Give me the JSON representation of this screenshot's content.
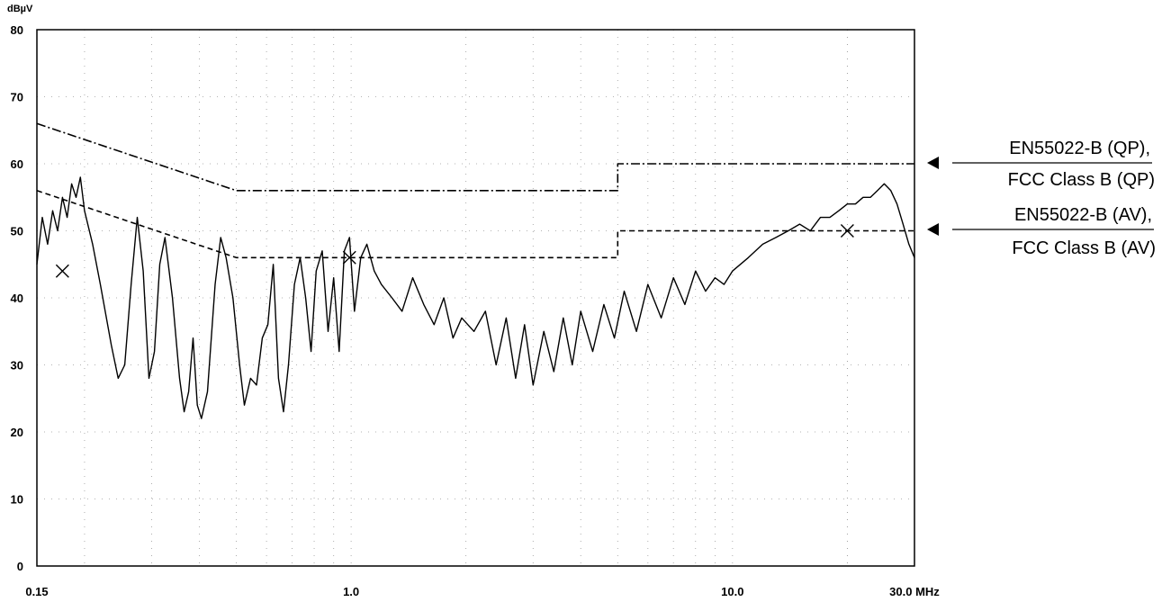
{
  "chart_data": {
    "type": "line",
    "title": "",
    "xlabel": "",
    "ylabel": "",
    "y_unit": "dBµV",
    "x_unit": "MHz",
    "x_scale": "log",
    "xlim": [
      0.15,
      30.0
    ],
    "ylim": [
      0,
      80
    ],
    "y_ticks": [
      "0",
      "10",
      "20",
      "30",
      "40",
      "50",
      "60",
      "70",
      "80"
    ],
    "x_ticks": [
      {
        "value": 0.15,
        "label": "0.15"
      },
      {
        "value": 1.0,
        "label": "1.0"
      },
      {
        "value": 10.0,
        "label": "10.0"
      },
      {
        "value": 30.0,
        "label": "30.0 MHz"
      }
    ],
    "grid": true,
    "series": [
      {
        "name": "",
        "style": "dash-dot",
        "points": [
          [
            0.15,
            66
          ],
          [
            0.5,
            56
          ],
          [
            5.0,
            56
          ],
          [
            5.0,
            60
          ],
          [
            30.0,
            60
          ]
        ]
      },
      {
        "name": "",
        "style": "dashed",
        "points": [
          [
            0.15,
            56
          ],
          [
            0.5,
            46
          ],
          [
            5.0,
            46
          ],
          [
            5.0,
            50
          ],
          [
            30.0,
            50
          ]
        ]
      },
      {
        "name": "",
        "style": "solid",
        "points": [
          [
            0.15,
            45
          ],
          [
            0.155,
            52
          ],
          [
            0.16,
            48
          ],
          [
            0.165,
            53
          ],
          [
            0.17,
            50
          ],
          [
            0.175,
            55
          ],
          [
            0.18,
            52
          ],
          [
            0.185,
            57
          ],
          [
            0.19,
            55
          ],
          [
            0.195,
            58
          ],
          [
            0.2,
            53
          ],
          [
            0.21,
            48
          ],
          [
            0.22,
            42
          ],
          [
            0.235,
            33
          ],
          [
            0.245,
            28
          ],
          [
            0.255,
            30
          ],
          [
            0.265,
            42
          ],
          [
            0.275,
            52
          ],
          [
            0.285,
            44
          ],
          [
            0.295,
            28
          ],
          [
            0.305,
            32
          ],
          [
            0.315,
            45
          ],
          [
            0.325,
            49
          ],
          [
            0.34,
            40
          ],
          [
            0.355,
            28
          ],
          [
            0.365,
            23
          ],
          [
            0.375,
            26
          ],
          [
            0.385,
            34
          ],
          [
            0.395,
            24
          ],
          [
            0.405,
            22
          ],
          [
            0.42,
            26
          ],
          [
            0.44,
            42
          ],
          [
            0.455,
            49
          ],
          [
            0.47,
            46
          ],
          [
            0.49,
            40
          ],
          [
            0.51,
            30
          ],
          [
            0.525,
            24
          ],
          [
            0.545,
            28
          ],
          [
            0.565,
            27
          ],
          [
            0.585,
            34
          ],
          [
            0.605,
            36
          ],
          [
            0.625,
            45
          ],
          [
            0.645,
            28
          ],
          [
            0.665,
            23
          ],
          [
            0.685,
            30
          ],
          [
            0.71,
            42
          ],
          [
            0.735,
            46
          ],
          [
            0.76,
            40
          ],
          [
            0.785,
            32
          ],
          [
            0.81,
            44
          ],
          [
            0.84,
            47
          ],
          [
            0.87,
            35
          ],
          [
            0.9,
            43
          ],
          [
            0.93,
            32
          ],
          [
            0.96,
            47
          ],
          [
            0.99,
            49
          ],
          [
            1.02,
            38
          ],
          [
            1.06,
            46
          ],
          [
            1.1,
            48
          ],
          [
            1.15,
            44
          ],
          [
            1.2,
            42
          ],
          [
            1.28,
            40
          ],
          [
            1.36,
            38
          ],
          [
            1.45,
            43
          ],
          [
            1.55,
            39
          ],
          [
            1.65,
            36
          ],
          [
            1.75,
            40
          ],
          [
            1.85,
            34
          ],
          [
            1.95,
            37
          ],
          [
            2.1,
            35
          ],
          [
            2.25,
            38
          ],
          [
            2.4,
            30
          ],
          [
            2.55,
            37
          ],
          [
            2.7,
            28
          ],
          [
            2.85,
            36
          ],
          [
            3.0,
            27
          ],
          [
            3.2,
            35
          ],
          [
            3.4,
            29
          ],
          [
            3.6,
            37
          ],
          [
            3.8,
            30
          ],
          [
            4.0,
            38
          ],
          [
            4.3,
            32
          ],
          [
            4.6,
            39
          ],
          [
            4.9,
            34
          ],
          [
            5.2,
            41
          ],
          [
            5.6,
            35
          ],
          [
            6.0,
            42
          ],
          [
            6.5,
            37
          ],
          [
            7.0,
            43
          ],
          [
            7.5,
            39
          ],
          [
            8.0,
            44
          ],
          [
            8.5,
            41
          ],
          [
            9.0,
            43
          ],
          [
            9.5,
            42
          ],
          [
            10.0,
            44
          ],
          [
            11.0,
            46
          ],
          [
            12.0,
            48
          ],
          [
            13.0,
            49
          ],
          [
            14.0,
            50
          ],
          [
            15.0,
            51
          ],
          [
            16.0,
            50
          ],
          [
            17.0,
            52
          ],
          [
            18.0,
            52
          ],
          [
            19.0,
            53
          ],
          [
            20.0,
            54
          ],
          [
            21.0,
            54
          ],
          [
            22.0,
            55
          ],
          [
            23.0,
            55
          ],
          [
            24.0,
            56
          ],
          [
            25.0,
            57
          ],
          [
            26.0,
            56
          ],
          [
            27.0,
            54
          ],
          [
            28.0,
            51
          ],
          [
            29.0,
            48
          ],
          [
            30.0,
            46
          ]
        ]
      }
    ],
    "markers": [
      [
        0.175,
        44
      ],
      [
        0.99,
        46
      ],
      [
        20.0,
        50
      ]
    ],
    "annotations": [
      {
        "id": "qp",
        "lines": [
          "EN55022-B (QP),",
          "FCC Class B (QP)"
        ],
        "points_to": 60
      },
      {
        "id": "av",
        "lines": [
          "EN55022-B (AV),",
          "FCC Class B (AV)"
        ],
        "points_to": 50
      }
    ]
  }
}
